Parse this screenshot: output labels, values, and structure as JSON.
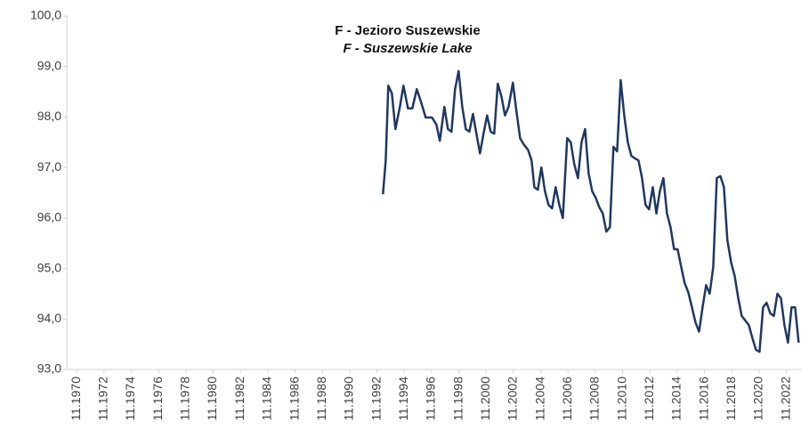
{
  "chart_data": {
    "type": "line",
    "title": "F - Jezioro Suszewskie",
    "subtitle": "F - Suszewskie  Lake",
    "xlim": [
      1970.1,
      2023.9
    ],
    "ylim": [
      93,
      100
    ],
    "yticks": [
      {
        "value": 93,
        "label": "93,0"
      },
      {
        "value": 94,
        "label": "94,0"
      },
      {
        "value": 95,
        "label": "95,0"
      },
      {
        "value": 96,
        "label": "96,0"
      },
      {
        "value": 97,
        "label": "97,0"
      },
      {
        "value": 98,
        "label": "98,0"
      },
      {
        "value": 99,
        "label": "99,0"
      },
      {
        "value": 100,
        "label": "100,0"
      }
    ],
    "xticks": [
      {
        "value": 1970.83,
        "label": "11.1970"
      },
      {
        "value": 1972.83,
        "label": "11.1972"
      },
      {
        "value": 1974.83,
        "label": "11.1974"
      },
      {
        "value": 1976.83,
        "label": "11.1976"
      },
      {
        "value": 1978.83,
        "label": "11.1978"
      },
      {
        "value": 1980.83,
        "label": "11.1980"
      },
      {
        "value": 1982.83,
        "label": "11.1982"
      },
      {
        "value": 1984.83,
        "label": "11.1984"
      },
      {
        "value": 1986.83,
        "label": "11.1986"
      },
      {
        "value": 1988.83,
        "label": "11.1988"
      },
      {
        "value": 1990.83,
        "label": "11.1990"
      },
      {
        "value": 1992.83,
        "label": "11.1992"
      },
      {
        "value": 1994.83,
        "label": "11.1994"
      },
      {
        "value": 1996.83,
        "label": "11.1996"
      },
      {
        "value": 1998.83,
        "label": "11.1998"
      },
      {
        "value": 2000.83,
        "label": "11.2000"
      },
      {
        "value": 2002.83,
        "label": "11.2002"
      },
      {
        "value": 2004.83,
        "label": "11.2004"
      },
      {
        "value": 2006.83,
        "label": "11.2006"
      },
      {
        "value": 2008.83,
        "label": "11.2008"
      },
      {
        "value": 2010.83,
        "label": "11.2010"
      },
      {
        "value": 2012.83,
        "label": "11.2012"
      },
      {
        "value": 2014.83,
        "label": "11.2014"
      },
      {
        "value": 2016.83,
        "label": "11.2016"
      },
      {
        "value": 2018.83,
        "label": "11.2018"
      },
      {
        "value": 2020.83,
        "label": "11.2020"
      },
      {
        "value": 2022.83,
        "label": "11.2022"
      }
    ],
    "series": [
      {
        "color": "#1f3864",
        "x": [
          1993.27,
          1993.47,
          1993.66,
          1993.92,
          1994.18,
          1994.51,
          1994.77,
          1995.1,
          1995.42,
          1995.75,
          1996.07,
          1996.4,
          1996.86,
          1997.18,
          1997.44,
          1997.77,
          1998.03,
          1998.29,
          1998.55,
          1998.81,
          1999.08,
          1999.34,
          1999.6,
          1999.86,
          2000.12,
          2000.38,
          2000.64,
          2000.9,
          2001.16,
          2001.42,
          2001.68,
          2001.95,
          2002.21,
          2002.47,
          2002.79,
          2003.05,
          2003.32,
          2003.58,
          2003.9,
          2004.16,
          2004.36,
          2004.62,
          2004.88,
          2005.14,
          2005.4,
          2005.66,
          2005.92,
          2006.19,
          2006.45,
          2006.77,
          2007.03,
          2007.29,
          2007.56,
          2007.82,
          2008.08,
          2008.34,
          2008.6,
          2008.86,
          2009.12,
          2009.38,
          2009.64,
          2009.9,
          2010.16,
          2010.43,
          2010.69,
          2010.95,
          2011.21,
          2011.47,
          2011.73,
          2011.99,
          2012.25,
          2012.51,
          2012.77,
          2013.04,
          2013.3,
          2013.56,
          2013.82,
          2014.08,
          2014.34,
          2014.6,
          2014.86,
          2015.12,
          2015.38,
          2015.64,
          2015.91,
          2016.17,
          2016.43,
          2016.69,
          2016.95,
          2017.21,
          2017.47,
          2017.73,
          2017.99,
          2018.25,
          2018.51,
          2018.78,
          2019.04,
          2019.3,
          2019.56,
          2019.82,
          2020.08,
          2020.34,
          2020.6,
          2020.86,
          2021.12,
          2021.38,
          2021.65,
          2021.91,
          2022.17,
          2022.43,
          2022.69,
          2022.95,
          2023.21,
          2023.47,
          2023.73
        ],
        "values": [
          96.47,
          97.14,
          98.62,
          98.47,
          97.76,
          98.2,
          98.62,
          98.17,
          98.17,
          98.55,
          98.29,
          97.99,
          97.99,
          97.85,
          97.53,
          98.2,
          97.76,
          97.71,
          98.55,
          98.91,
          98.2,
          97.76,
          97.71,
          98.06,
          97.67,
          97.28,
          97.67,
          98.03,
          97.71,
          97.67,
          98.66,
          98.41,
          98.03,
          98.2,
          98.68,
          98.11,
          97.58,
          97.46,
          97.35,
          97.14,
          96.61,
          96.56,
          97.0,
          96.53,
          96.26,
          96.19,
          96.61,
          96.26,
          96.0,
          97.58,
          97.5,
          97.06,
          96.79,
          97.5,
          97.76,
          96.88,
          96.53,
          96.4,
          96.21,
          96.09,
          95.73,
          95.82,
          97.41,
          97.32,
          98.73,
          98.03,
          97.5,
          97.23,
          97.18,
          97.14,
          96.79,
          96.26,
          96.17,
          96.61,
          96.09,
          96.53,
          96.79,
          96.09,
          95.82,
          95.38,
          95.38,
          95.03,
          94.71,
          94.53,
          94.23,
          93.93,
          93.75,
          94.23,
          94.67,
          94.5,
          95.03,
          96.79,
          96.83,
          96.61,
          95.56,
          95.12,
          94.85,
          94.41,
          94.06,
          93.97,
          93.88,
          93.62,
          93.39,
          93.35,
          94.23,
          94.32,
          94.11,
          94.06,
          94.5,
          94.41,
          93.88,
          93.53,
          94.23,
          94.23,
          93.53
        ]
      }
    ]
  }
}
